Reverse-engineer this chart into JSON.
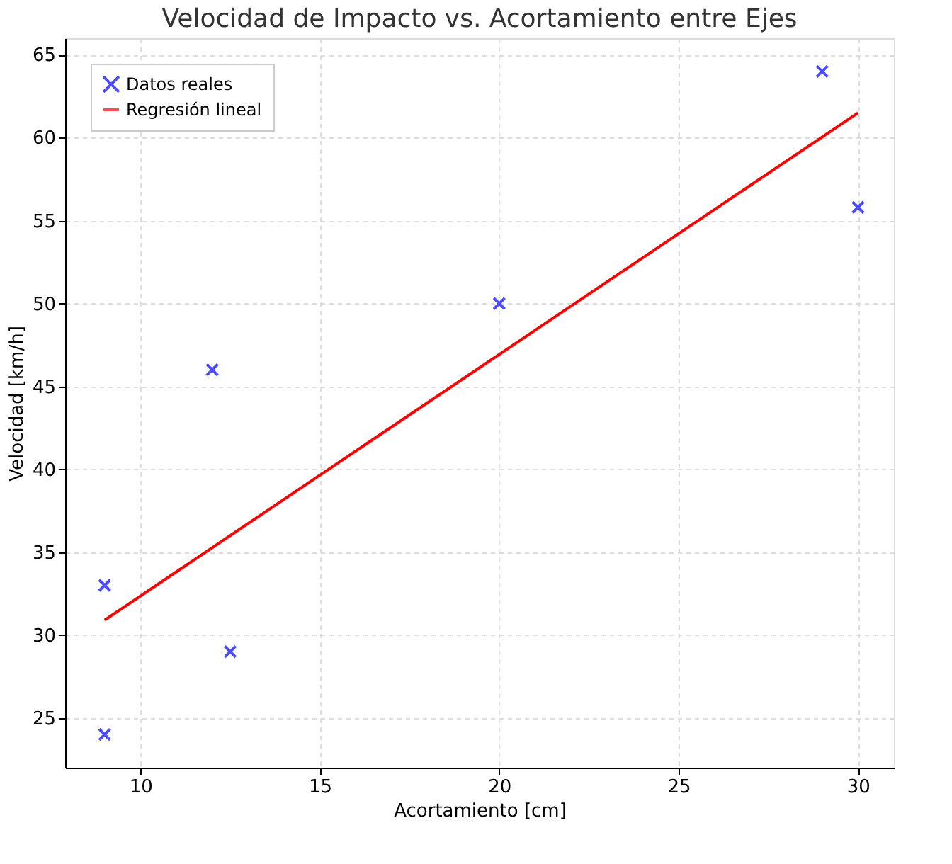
{
  "chart_data": {
    "type": "scatter",
    "title": "Velocidad de Impacto vs. Acortamiento entre Ejes",
    "xlabel": "Acortamiento [cm]",
    "ylabel": "Velocidad [km/h]",
    "series": [
      {
        "name": "Datos reales",
        "color": "#0000ff",
        "marker": "cross",
        "x": [
          9,
          9,
          12,
          12.5,
          20,
          29,
          30
        ],
        "values": [
          24,
          33,
          46,
          29,
          50,
          64,
          55.8
        ]
      },
      {
        "name": "Regresión lineal",
        "type": "line",
        "color": "#ff0000",
        "line_style": "solid",
        "x": [
          9,
          30
        ],
        "values": [
          30.9,
          61.5
        ]
      }
    ],
    "xlim": [
      7.9,
      31
    ],
    "ylim": [
      22,
      66
    ],
    "xticks": [
      10,
      15,
      20,
      25,
      30
    ],
    "yticks": [
      25,
      30,
      35,
      40,
      45,
      50,
      55,
      60,
      65
    ],
    "grid": true,
    "legend": "top left"
  }
}
